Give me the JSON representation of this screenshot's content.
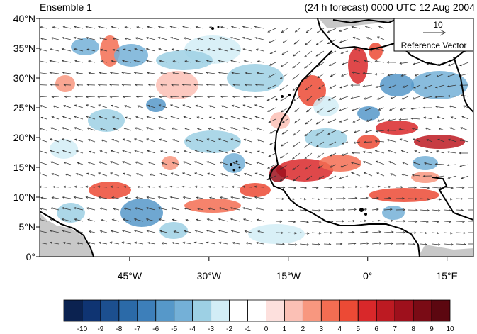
{
  "header": {
    "left_title": "Ensemble 1",
    "right_title": "(24 h forecast) 0000 UTC 12 Aug 2004"
  },
  "map": {
    "lat_labels": [
      "40°N",
      "35°N",
      "30°N",
      "25°N",
      "20°N",
      "15°N",
      "10°N",
      "5°N",
      "0°"
    ],
    "lon_labels": [
      "45°W",
      "30°W",
      "15°W",
      "0°",
      "15°E"
    ],
    "extent": {
      "lon_min": -62,
      "lon_max": 20,
      "lat_min": 0,
      "lat_max": 40
    }
  },
  "reference_vector": {
    "value": "10",
    "label": "Reference Vector"
  },
  "colorbar": {
    "labels": [
      "-10",
      "-9",
      "-8",
      "-7",
      "-6",
      "-5",
      "-4",
      "-3",
      "-2",
      "-1",
      "0",
      "1",
      "2",
      "3",
      "4",
      "5",
      "6",
      "7",
      "8",
      "9",
      "10"
    ],
    "colors": [
      "#0b2250",
      "#0f3472",
      "#1c4f8f",
      "#2b6aa8",
      "#3d7fba",
      "#5698c9",
      "#74b0d7",
      "#9dd0e4",
      "#d2edf6",
      "#ffffff",
      "#ffffff",
      "#fde0dd",
      "#fbc0b5",
      "#f8977f",
      "#f36d52",
      "#ec4a35",
      "#d9282a",
      "#bd1a22",
      "#9e101c",
      "#7a0b15",
      "#5c0710"
    ]
  },
  "colors": {
    "land_mask": "#c8c8c8",
    "coastline": "#000000",
    "arrow": "#333333"
  }
}
